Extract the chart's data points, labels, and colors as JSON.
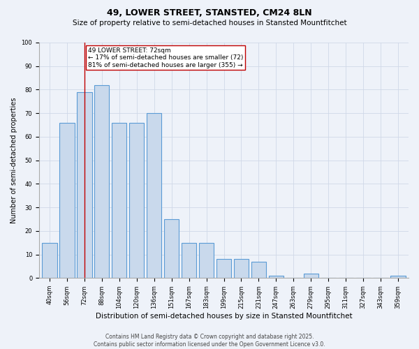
{
  "title": "49, LOWER STREET, STANSTED, CM24 8LN",
  "subtitle": "Size of property relative to semi-detached houses in Stansted Mountfitchet",
  "xlabel": "Distribution of semi-detached houses by size in Stansted Mountfitchet",
  "ylabel": "Number of semi-detached properties",
  "categories": [
    "40sqm",
    "56sqm",
    "72sqm",
    "88sqm",
    "104sqm",
    "120sqm",
    "136sqm",
    "151sqm",
    "167sqm",
    "183sqm",
    "199sqm",
    "215sqm",
    "231sqm",
    "247sqm",
    "263sqm",
    "279sqm",
    "295sqm",
    "311sqm",
    "327sqm",
    "343sqm",
    "359sqm"
  ],
  "values": [
    15,
    66,
    79,
    82,
    66,
    66,
    70,
    25,
    15,
    15,
    8,
    8,
    7,
    1,
    0,
    2,
    0,
    0,
    0,
    0,
    1
  ],
  "bar_color": "#c9d9ec",
  "bar_edge_color": "#5b9bd5",
  "highlight_index": 2,
  "highlight_line_color": "#c00000",
  "annotation_line1": "49 LOWER STREET: 72sqm",
  "annotation_line2": "← 17% of semi-detached houses are smaller (72)",
  "annotation_line3": "81% of semi-detached houses are larger (355) →",
  "annotation_box_color": "#ffffff",
  "annotation_box_edge_color": "#c00000",
  "footer_text": "Contains HM Land Registry data © Crown copyright and database right 2025.\nContains public sector information licensed under the Open Government Licence v3.0.",
  "ylim": [
    0,
    100
  ],
  "grid_color": "#d0d8e8",
  "background_color": "#eef2f9",
  "title_fontsize": 9,
  "subtitle_fontsize": 7.5,
  "ylabel_fontsize": 7,
  "xlabel_fontsize": 7.5,
  "tick_fontsize": 6,
  "annotation_fontsize": 6.5,
  "footer_fontsize": 5.5
}
